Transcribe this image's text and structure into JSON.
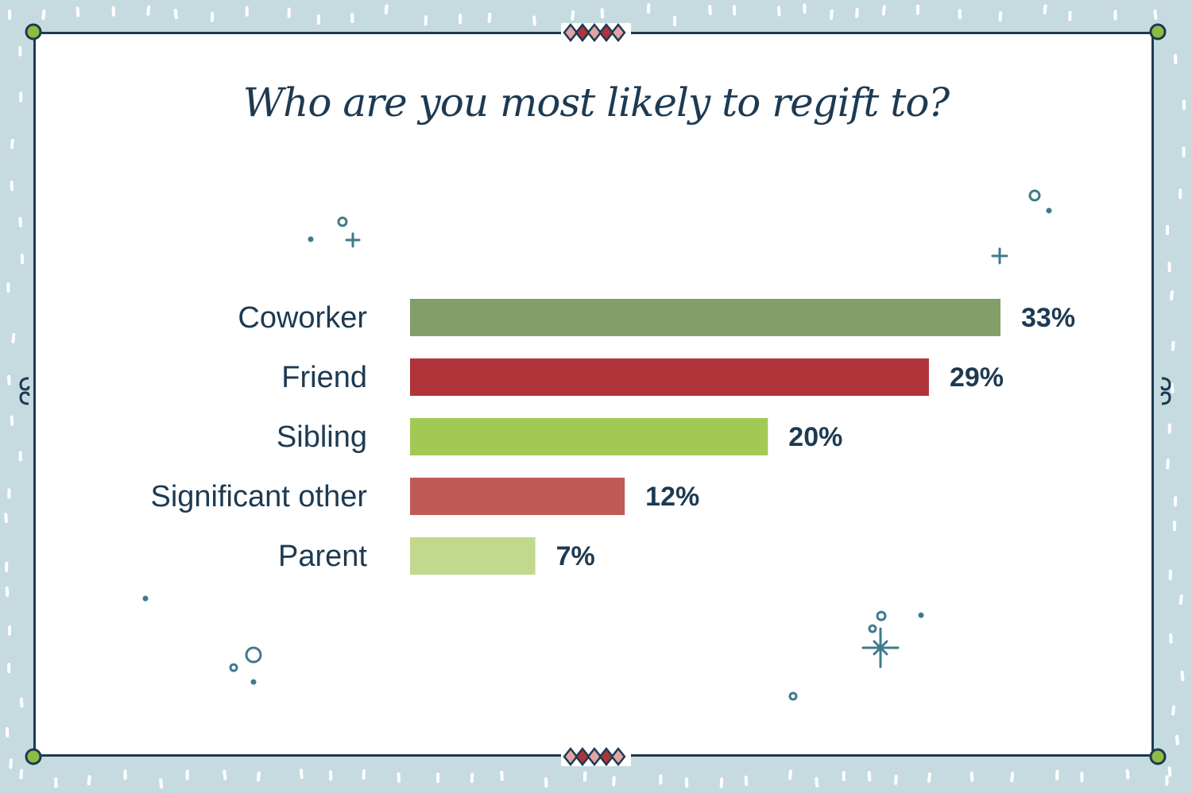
{
  "chart_data": {
    "type": "bar",
    "orientation": "horizontal",
    "title": "Who are you most likely to regift to?",
    "categories": [
      "Coworker",
      "Friend",
      "Sibling",
      "Significant other",
      "Parent"
    ],
    "values": [
      33,
      29,
      20,
      12,
      7
    ],
    "value_labels": [
      "33%",
      "29%",
      "20%",
      "12%",
      "7%"
    ],
    "colors": [
      "#839f68",
      "#b1333a",
      "#a3c955",
      "#bf5a56",
      "#c1d98c"
    ],
    "xlim": [
      0,
      33
    ],
    "grid": false,
    "legend": "none"
  },
  "theme": {
    "background": "#c5dbe0",
    "card": "#ffffff",
    "border": "#1d3a52",
    "corner_dot": "#8dbb44",
    "decoration": "#3f7a8c",
    "text": "#1d3a52"
  },
  "decorations": [
    "snow-dashes",
    "corner-dots",
    "diamond-ornaments",
    "sparkles"
  ]
}
